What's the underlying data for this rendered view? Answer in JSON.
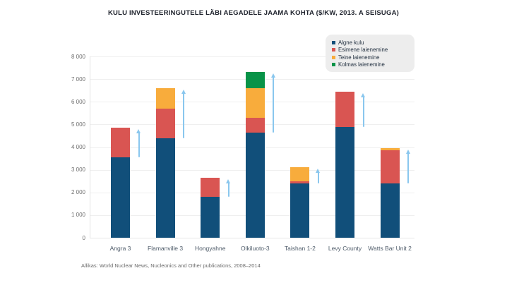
{
  "title": "KULU INVESTEERINGUTELE LÄBI AEGADELE JAAMA KOHTA ($/KW, 2013. A SEISUGA)",
  "source": "Allikas: World Nuclear News, Nucleonics and Other publications, 2008–2014",
  "colors": {
    "bar_initial": "#114f7a",
    "bar_first_expansion": "#d95552",
    "bar_second_expansion": "#f8ac3c",
    "bar_third_expansion": "#089348",
    "arrow": "#8ac7ee",
    "legend_background": "#ededed",
    "gridline": "#efefef",
    "title_text": "#20242e",
    "axis_text": "#6e6e6e",
    "category_text": "#4d5a68"
  },
  "chart_data": {
    "type": "bar",
    "stacked": true,
    "title": "KULU INVESTEERINGUTELE LÄBI AEGADELE JAAMA KOHTA ($/KW, 2013. A SEISUGA)",
    "categories": [
      "Angra 3",
      "Flamanville 3",
      "Hongyahne",
      "Olkiluoto-3",
      "Taishan 1-2",
      "Levy County",
      "Watts Bar Unit 2"
    ],
    "series": [
      {
        "name": "Algne kulu",
        "color": "#114f7a",
        "values": [
          3550,
          4400,
          1800,
          4650,
          2400,
          4900,
          2400
        ]
      },
      {
        "name": "Esimene laienemine",
        "color": "#d95552",
        "values": [
          1300,
          1300,
          850,
          650,
          100,
          1550,
          1450
        ]
      },
      {
        "name": "Teine laienemine",
        "color": "#f8ac3c",
        "values": [
          0,
          900,
          0,
          1300,
          600,
          0,
          100
        ]
      },
      {
        "name": "Kolmas laienemine",
        "color": "#089348",
        "values": [
          0,
          0,
          0,
          700,
          0,
          0,
          0
        ]
      }
    ],
    "totals": [
      4850,
      6600,
      2650,
      7300,
      3100,
      6450,
      3950
    ],
    "xlabel": "",
    "ylabel": "",
    "ylim": [
      0,
      8000
    ],
    "ytick_step": 1000,
    "ytick_labels": [
      "0",
      "1 000",
      "2 000",
      "3 000",
      "4 000",
      "5 000",
      "6 000",
      "7 000",
      "8 000"
    ],
    "grid": true,
    "legend_position": "top-right",
    "annotations": "light blue upward arrow beside each bar from initial-cost level to final total level"
  }
}
